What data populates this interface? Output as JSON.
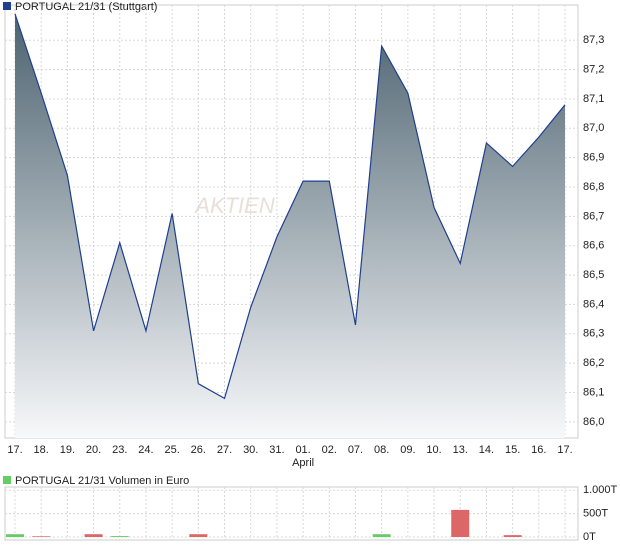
{
  "chart_data": [
    {
      "type": "area",
      "title": "PORTUGAL 21/31 (Stuttgart)",
      "color": "#1f3f8f",
      "watermark": "AKTIEN",
      "categories": [
        "17.",
        "18.",
        "19.",
        "20.",
        "23.",
        "24.",
        "25.",
        "26.",
        "27.",
        "30.",
        "31.",
        "01.",
        "02.",
        "07.",
        "08.",
        "09.",
        "10.",
        "13.",
        "14.",
        "15.",
        "16.",
        "17."
      ],
      "month_labels": [
        null,
        null,
        null,
        null,
        null,
        null,
        null,
        null,
        null,
        null,
        null,
        "April",
        null,
        null,
        null,
        null,
        null,
        null,
        null,
        null,
        null,
        null
      ],
      "values": [
        87.39,
        87.12,
        86.84,
        86.31,
        86.61,
        86.31,
        86.71,
        86.13,
        86.08,
        86.39,
        86.63,
        86.82,
        86.82,
        86.33,
        87.28,
        87.12,
        86.73,
        86.54,
        86.95,
        86.87,
        86.97,
        87.08
      ],
      "ylim": [
        85.945,
        87.42
      ],
      "yticks": [
        {
          "value": 86.0,
          "label": "86,0"
        },
        {
          "value": 86.1,
          "label": "86,1"
        },
        {
          "value": 86.2,
          "label": "86,2"
        },
        {
          "value": 86.3,
          "label": "86,3"
        },
        {
          "value": 86.4,
          "label": "86,4"
        },
        {
          "value": 86.5,
          "label": "86,5"
        },
        {
          "value": 86.6,
          "label": "86,6"
        },
        {
          "value": 86.7,
          "label": "86,7"
        },
        {
          "value": 86.8,
          "label": "86,8"
        },
        {
          "value": 86.9,
          "label": "86,9"
        },
        {
          "value": 87.0,
          "label": "87,0"
        },
        {
          "value": 87.1,
          "label": "87,1"
        },
        {
          "value": 87.2,
          "label": "87,2"
        },
        {
          "value": 87.3,
          "label": "87,3"
        }
      ],
      "grid": true
    },
    {
      "type": "bar",
      "title": "PORTUGAL 21/31 Volumen in Euro",
      "color": "#66cc66",
      "values": [
        60000,
        15000,
        0,
        60000,
        20000,
        0,
        0,
        60000,
        0,
        0,
        0,
        0,
        0,
        0,
        60000,
        0,
        0,
        580000,
        0,
        40000,
        0,
        0
      ],
      "bar_colors": [
        "#66cc66",
        "#dd6666",
        null,
        "#dd6666",
        "#66cc66",
        null,
        null,
        "#dd6666",
        null,
        null,
        null,
        null,
        null,
        null,
        "#66cc66",
        null,
        null,
        "#dd6666",
        null,
        "#dd6666",
        null,
        null
      ],
      "ylim": [
        0,
        1070000
      ],
      "yticks": [
        {
          "value": 0,
          "label": "0T"
        },
        {
          "value": 500000,
          "label": "500T"
        },
        {
          "value": 1000000,
          "label": "1.000T"
        }
      ],
      "grid": true
    }
  ]
}
